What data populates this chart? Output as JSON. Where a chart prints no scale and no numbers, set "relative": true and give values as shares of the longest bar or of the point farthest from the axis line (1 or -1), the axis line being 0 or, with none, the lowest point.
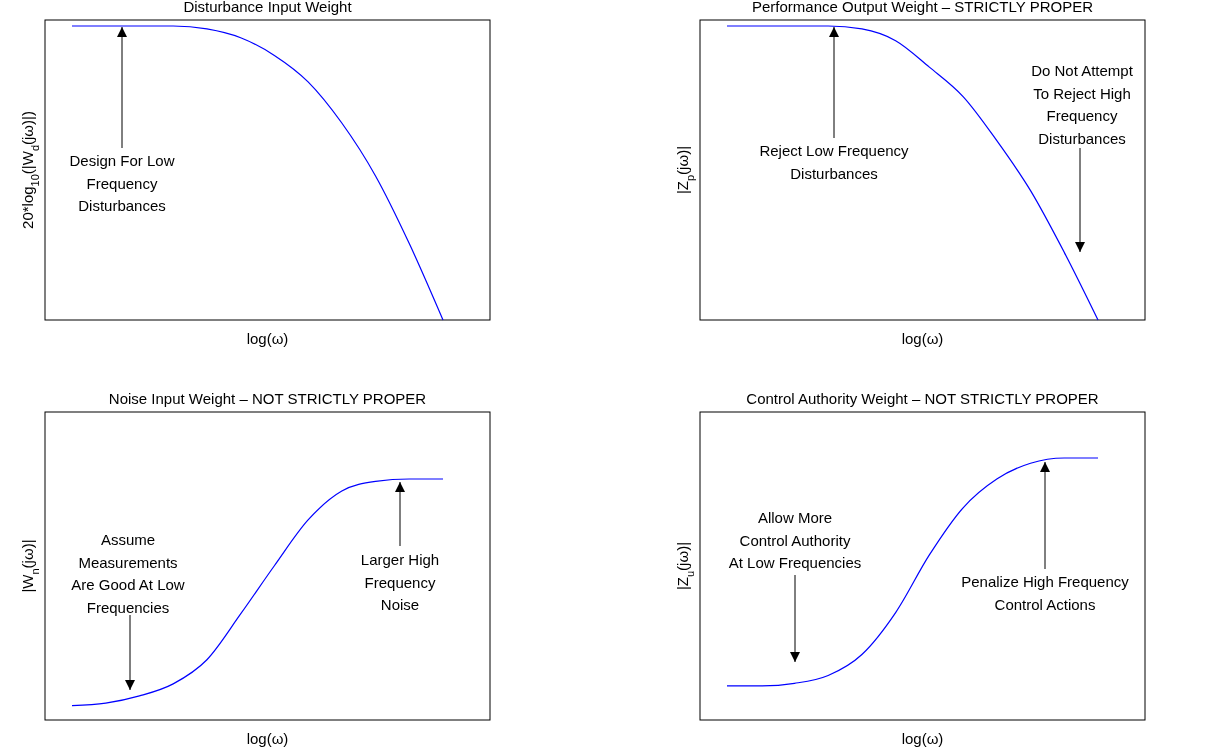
{
  "chart_data": [
    {
      "type": "line",
      "title": "Disturbance Input Weight",
      "xlabel": "log(ω)",
      "ylabel": "20*log$_{10}$(|W$_{d}$(jω)|)",
      "relative": true,
      "color": "#0000ff",
      "categories": [
        null,
        null,
        null,
        null,
        null,
        null,
        null,
        null,
        null,
        null,
        null,
        null
      ],
      "values": [
        1,
        1,
        1,
        1,
        0.99,
        0.96,
        0.9,
        0.81,
        0.67,
        0.49,
        0.26,
        0
      ],
      "annotations": [
        "Design For Low\nFrequency\nDisturbances"
      ]
    },
    {
      "type": "line",
      "title": "Performance Output Weight – STRICTLY PROPER",
      "xlabel": "log(ω)",
      "ylabel": "|Z$_{p}$(jω)|",
      "relative": true,
      "color": "#0000ff",
      "categories": [
        null,
        null,
        null,
        null,
        null,
        null,
        null,
        null,
        null,
        null,
        null,
        null
      ],
      "values": [
        1,
        1,
        1,
        1,
        0.99,
        0.95,
        0.86,
        0.76,
        0.61,
        0.44,
        0.23,
        0
      ],
      "annotations": [
        "Reject Low Frequency\nDisturbances",
        "Do Not  Attempt\nTo Reject High\nFrequency\nDisturbances"
      ]
    },
    {
      "type": "line",
      "title": "Noise Input Weight – NOT STRICTLY PROPER",
      "xlabel": "log(ω)",
      "ylabel": "|W$_{n}$(jω)|",
      "relative": true,
      "color": "#0000ff",
      "categories": [
        null,
        null,
        null,
        null,
        null,
        null,
        null,
        null,
        null,
        null,
        null,
        null
      ],
      "values": [
        0.06,
        0.07,
        0.1,
        0.15,
        0.25,
        0.44,
        0.64,
        0.83,
        0.95,
        0.99,
        1,
        1
      ],
      "annotations": [
        "Assume\nMeasurements\nAre Good At Low\nFrequencies",
        "Larger High\nFrequency\nNoise"
      ]
    },
    {
      "type": "line",
      "title": "Control Authority Weight – NOT STRICTLY PROPER",
      "xlabel": "log(ω)",
      "ylabel": "|Z$_{u}$(jω)|",
      "relative": true,
      "color": "#0000ff",
      "categories": [
        null,
        null,
        null,
        null,
        null,
        null,
        null,
        null,
        null,
        null,
        null,
        null
      ],
      "values": [
        0.13,
        0.13,
        0.14,
        0.17,
        0.25,
        0.41,
        0.63,
        0.81,
        0.92,
        0.98,
        1,
        1
      ],
      "annotations": [
        "Allow More\nControl Authority\nAt Low Frequencies",
        "Penalize High Frequency\nControl Actions"
      ]
    }
  ]
}
